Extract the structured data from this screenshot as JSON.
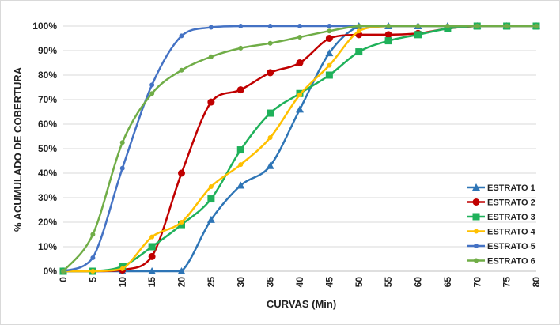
{
  "chart_data": {
    "type": "line",
    "xlabel": "CURVAS (Min)",
    "ylabel": "% ACUMULADO  DE COBERTURA",
    "xlim": [
      0,
      80
    ],
    "ylim": [
      0,
      100
    ],
    "x_ticks": [
      "0",
      "5",
      "10",
      "15",
      "20",
      "25",
      "30",
      "35",
      "40",
      "45",
      "50",
      "55",
      "60",
      "65",
      "70",
      "75",
      "80"
    ],
    "y_ticks": [
      "0%",
      "10%",
      "20%",
      "30%",
      "40%",
      "50%",
      "60%",
      "70%",
      "80%",
      "90%",
      "100%"
    ],
    "grid": "horizontal",
    "legend_position": "bottom-right",
    "series": [
      {
        "name": "ESTRATO 1",
        "color": "#2e75b6",
        "marker": "triangle",
        "x": [
          0,
          5,
          10,
          15,
          20,
          25,
          30,
          35,
          40,
          45,
          50,
          55,
          60,
          65,
          70,
          75,
          80
        ],
        "y": [
          0,
          0,
          0,
          0,
          0,
          21,
          35,
          43,
          66,
          89,
          100,
          100,
          100,
          100,
          100,
          100,
          100
        ]
      },
      {
        "name": "ESTRATO 2",
        "color": "#c00000",
        "marker": "circle",
        "x": [
          0,
          5,
          10,
          15,
          20,
          25,
          30,
          35,
          40,
          45,
          50,
          55,
          60,
          65,
          70,
          75,
          80
        ],
        "y": [
          0,
          0,
          0.5,
          6,
          40,
          69,
          74,
          81,
          85,
          95,
          96.5,
          96.5,
          97,
          99,
          100,
          100,
          100
        ]
      },
      {
        "name": "ESTRATO 3",
        "color": "#1fb15a",
        "marker": "square",
        "x": [
          0,
          5,
          10,
          15,
          20,
          25,
          30,
          35,
          40,
          45,
          50,
          55,
          60,
          65,
          70,
          75,
          80
        ],
        "y": [
          0,
          0,
          2,
          10,
          19,
          29.5,
          49.5,
          64.5,
          72.5,
          80,
          89.5,
          94,
          96.5,
          99,
          100,
          100,
          100
        ]
      },
      {
        "name": "ESTRATO 4",
        "color": "#ffc000",
        "marker": "circle-small",
        "x": [
          0,
          5,
          10,
          15,
          20,
          25,
          30,
          35,
          40,
          45,
          50,
          55,
          60,
          65,
          70,
          75,
          80
        ],
        "y": [
          0,
          0,
          1,
          14,
          20,
          34.5,
          43.5,
          54.5,
          72,
          84,
          98,
          100,
          100,
          100,
          100,
          100,
          100
        ]
      },
      {
        "name": "ESTRATO 5",
        "color": "#4472c4",
        "marker": "circle-small",
        "x": [
          0,
          5,
          10,
          15,
          20,
          25,
          30,
          35,
          40,
          45,
          50,
          55,
          60,
          65,
          70,
          75,
          80
        ],
        "y": [
          0,
          5.5,
          42,
          76,
          96,
          99.5,
          100,
          100,
          100,
          100,
          100,
          100,
          100,
          100,
          100,
          100,
          100
        ]
      },
      {
        "name": "ESTRATO 6",
        "color": "#70ad47",
        "marker": "circle-small",
        "x": [
          0,
          5,
          10,
          15,
          20,
          25,
          30,
          35,
          40,
          45,
          50,
          55,
          60,
          65,
          70,
          75,
          80
        ],
        "y": [
          0,
          15,
          52.5,
          72.5,
          82,
          87.5,
          91,
          93,
          95.5,
          98,
          100,
          100,
          100,
          100,
          100,
          100,
          100
        ]
      }
    ]
  }
}
